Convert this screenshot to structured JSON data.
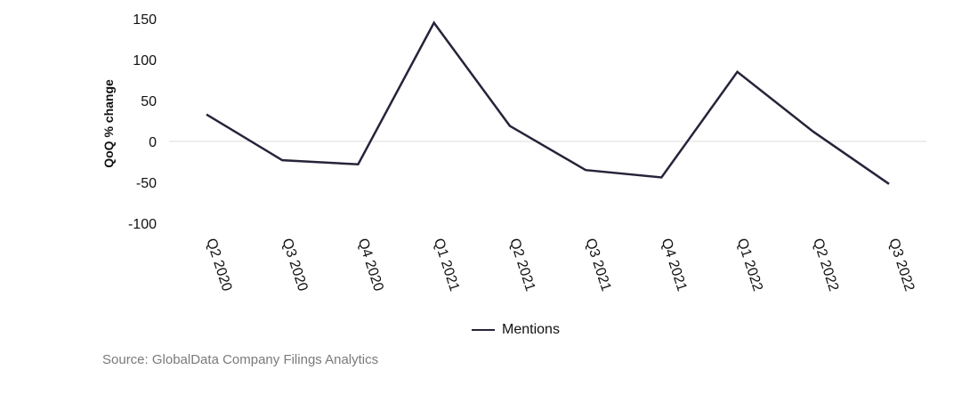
{
  "chart_data": {
    "type": "line",
    "categories": [
      "Q2 2020",
      "Q3 2020",
      "Q4 2020",
      "Q1 2021",
      "Q2 2021",
      "Q3 2021",
      "Q4 2021",
      "Q1 2022",
      "Q2 2022",
      "Q3 2022"
    ],
    "series": [
      {
        "name": "Mentions",
        "values": [
          33,
          -23,
          -28,
          145,
          19,
          -35,
          -44,
          85,
          12,
          -52
        ]
      }
    ],
    "ylabel": "QoQ % change",
    "ylim": [
      -100,
      150
    ],
    "yticks": [
      150,
      100,
      50,
      0,
      -50,
      -100
    ],
    "zero_line": true,
    "legend": "bottom-center"
  },
  "colors": {
    "line": "#27233a",
    "zero_line": "#dddddd",
    "source_text": "#7a7a7a"
  },
  "source": "Source: GlobalData Company Filings Analytics"
}
